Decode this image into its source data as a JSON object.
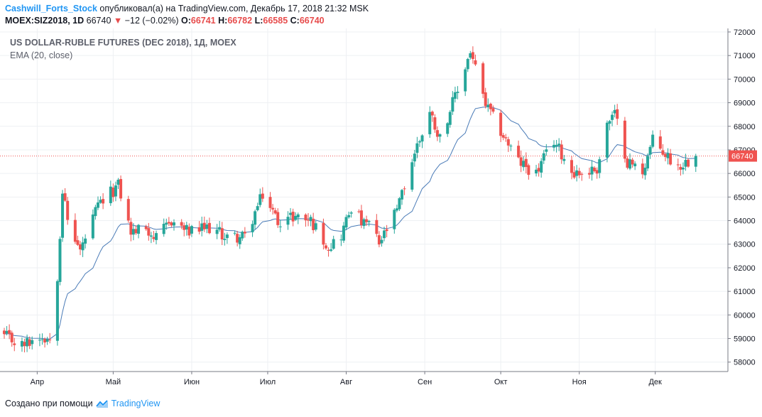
{
  "header": {
    "author": "Cashwill_Forts_Stock",
    "published_text": "опубликовал(а) на TradingView.com, Декабрь 17, 2018 21:32 MSK",
    "symbol_line": "MOEX:SIZ2018, 1D",
    "last": "66740",
    "change": "−12 (−0.02%)",
    "o_label": "O:",
    "o_value": "66741",
    "h_label": "H:",
    "h_value": "66782",
    "l_label": "L:",
    "l_value": "66585",
    "c_label": "C:",
    "c_value": "66740"
  },
  "footer": {
    "created_with": "Создано при помощи",
    "brand": "TradingView",
    "logo_icon": "tradingview-logo-icon"
  },
  "colors": {
    "up": "#26a69a",
    "down": "#ef5350",
    "ema": "#4a7bb7",
    "grid": "#eef0f3",
    "price_line": "#ef5350"
  },
  "chart_data": {
    "type": "candlestick",
    "title": "US DOLLAR-RUBLE FUTURES (DEC 2018), 1Д, MOEX",
    "indicator": "EMA (20, close)",
    "current_price": 66740,
    "current_price_label": "66740",
    "ylim": [
      57600,
      72150
    ],
    "y_ticks": [
      58000,
      59000,
      60000,
      61000,
      62000,
      63000,
      64000,
      65000,
      66000,
      67000,
      68000,
      69000,
      70000,
      71000,
      72000
    ],
    "y_tick_labels": [
      "58000",
      "59000",
      "60000",
      "61000",
      "62000",
      "63000",
      "64000",
      "65000",
      "66000",
      "67000",
      "68000",
      "69000",
      "70000",
      "71000",
      "72000"
    ],
    "x_range": [
      "2018-03-19",
      "2018-12-28"
    ],
    "x_ticks": [
      {
        "date": "2018-04-01",
        "label": "Апр"
      },
      {
        "date": "2018-05-01",
        "label": "Май"
      },
      {
        "date": "2018-06-01",
        "label": "Июн"
      },
      {
        "date": "2018-07-01",
        "label": "Июл"
      },
      {
        "date": "2018-08-01",
        "label": "Авг"
      },
      {
        "date": "2018-09-01",
        "label": "Сен"
      },
      {
        "date": "2018-10-01",
        "label": "Окт"
      },
      {
        "date": "2018-11-01",
        "label": "Ноя"
      },
      {
        "date": "2018-12-01",
        "label": "Дек"
      }
    ],
    "grid": true,
    "control_points": {
      "dates": [
        "2018-03-19",
        "2018-03-26",
        "2018-04-02",
        "2018-04-06",
        "2018-04-09",
        "2018-04-11",
        "2018-04-13",
        "2018-04-18",
        "2018-04-25",
        "2018-05-03",
        "2018-05-08",
        "2018-05-14",
        "2018-05-18",
        "2018-05-24",
        "2018-05-31",
        "2018-06-08",
        "2018-06-15",
        "2018-06-22",
        "2018-06-29",
        "2018-07-05",
        "2018-07-12",
        "2018-07-18",
        "2018-07-25",
        "2018-07-30",
        "2018-08-03",
        "2018-08-08",
        "2018-08-10",
        "2018-08-14",
        "2018-08-21",
        "2018-08-28",
        "2018-09-03",
        "2018-09-07",
        "2018-09-11",
        "2018-09-14",
        "2018-09-19",
        "2018-09-25",
        "2018-10-02",
        "2018-10-08",
        "2018-10-15",
        "2018-10-22",
        "2018-10-29",
        "2018-11-02",
        "2018-11-08",
        "2018-11-12",
        "2018-11-15",
        "2018-11-20",
        "2018-11-26",
        "2018-11-30",
        "2018-12-05",
        "2018-12-10",
        "2018-12-17"
      ],
      "closes": [
        59100,
        58700,
        59100,
        59000,
        61700,
        65300,
        64000,
        62700,
        64600,
        65500,
        63500,
        63700,
        63200,
        64000,
        63500,
        63700,
        63300,
        63300,
        65100,
        64000,
        64200,
        64000,
        62900,
        63400,
        64600,
        63800,
        63900,
        63000,
        64400,
        66900,
        68600,
        67500,
        68700,
        69500,
        71200,
        68900,
        67600,
        66500,
        66000,
        67400,
        66100,
        66000,
        66200,
        68100,
        68500,
        66500,
        66100,
        67400,
        66800,
        66300,
        66740
      ]
    },
    "candles": [],
    "ema": []
  }
}
